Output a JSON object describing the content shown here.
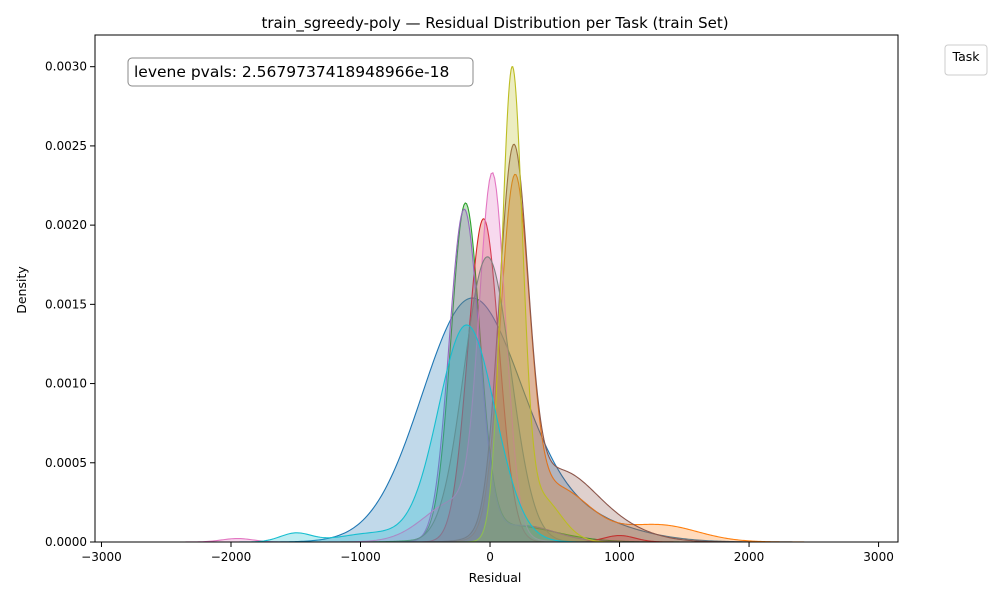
{
  "chart_data": {
    "type": "area",
    "title": "train_sgreedy-poly — Residual Distribution per Task (train Set)",
    "xlabel": "Residual",
    "ylabel": "Density",
    "xlim": [
      -3050,
      3150
    ],
    "ylim": [
      0,
      0.0032
    ],
    "xticks": [
      {
        "value": -3000,
        "label": "−3000"
      },
      {
        "value": -2000,
        "label": "−2000"
      },
      {
        "value": -1000,
        "label": "−1000"
      },
      {
        "value": 0,
        "label": "0"
      },
      {
        "value": 1000,
        "label": "1000"
      },
      {
        "value": 2000,
        "label": "2000"
      },
      {
        "value": 3000,
        "label": "3000"
      }
    ],
    "yticks": [
      {
        "value": 0,
        "label": "0.0000"
      },
      {
        "value": 0.0005,
        "label": "0.0005"
      },
      {
        "value": 0.001,
        "label": "0.0010"
      },
      {
        "value": 0.0015,
        "label": "0.0015"
      },
      {
        "value": 0.002,
        "label": "0.0020"
      },
      {
        "value": 0.0025,
        "label": "0.0025"
      },
      {
        "value": 0.003,
        "label": "0.0030"
      }
    ],
    "grid": false,
    "legend": {
      "title": "Task",
      "placement": "upper-right-outside",
      "entries": []
    },
    "annotation": {
      "text": "levene pvals: 2.5679737418948966e-18",
      "placement": "top-left"
    },
    "series": [
      {
        "color": "#1f77b4",
        "x_range": [
          -1800,
          2800
        ],
        "components": [
          [
            1.0,
            -150,
            380
          ],
          [
            0.1,
            600,
            450
          ]
        ],
        "peak": 0.00154
      },
      {
        "color": "#ff7f0e",
        "x_range": [
          -500,
          2700
        ],
        "components": [
          [
            1.0,
            190,
            110
          ],
          [
            0.16,
            500,
            260
          ],
          [
            0.05,
            1300,
            300
          ]
        ],
        "peak": 0.00232
      },
      {
        "color": "#2ca02c",
        "x_range": [
          -1800,
          1500
        ],
        "components": [
          [
            1.0,
            -190,
            110
          ],
          [
            0.05,
            150,
            350
          ]
        ],
        "peak": 0.00214
      },
      {
        "color": "#d62728",
        "x_range": [
          -900,
          1600
        ],
        "components": [
          [
            1.0,
            -50,
            120
          ],
          [
            0.02,
            1000,
            120
          ]
        ],
        "peak": 0.00204
      },
      {
        "color": "#9467bd",
        "x_range": [
          -1200,
          1200
        ],
        "components": [
          [
            1.0,
            -200,
            115
          ],
          [
            0.05,
            250,
            250
          ]
        ],
        "peak": 0.0021
      },
      {
        "color": "#8c564b",
        "x_range": [
          -600,
          2000
        ],
        "components": [
          [
            1.0,
            180,
            110
          ],
          [
            0.18,
            500,
            280
          ],
          [
            0.04,
            900,
            300
          ]
        ],
        "peak": 0.00251
      },
      {
        "color": "#e377c2",
        "x_range": [
          -2800,
          1500
        ],
        "components": [
          [
            1.0,
            20,
            100
          ],
          [
            0.12,
            -250,
            250
          ],
          [
            0.01,
            -1950,
            120
          ]
        ],
        "peak": 0.00233
      },
      {
        "color": "#7f7f7f",
        "x_range": [
          -1200,
          1300
        ],
        "components": [
          [
            1.0,
            -20,
            180
          ]
        ],
        "peak": 0.0018
      },
      {
        "color": "#bcbd22",
        "x_range": [
          -500,
          1500
        ],
        "components": [
          [
            1.0,
            170,
            80
          ],
          [
            0.1,
            380,
            160
          ]
        ],
        "peak": 0.003
      },
      {
        "color": "#17becf",
        "x_range": [
          -2000,
          2800
        ],
        "components": [
          [
            1.0,
            -180,
            220
          ],
          [
            0.04,
            -1500,
            120
          ],
          [
            0.04,
            -900,
            250
          ]
        ],
        "peak": 0.00137
      }
    ]
  }
}
